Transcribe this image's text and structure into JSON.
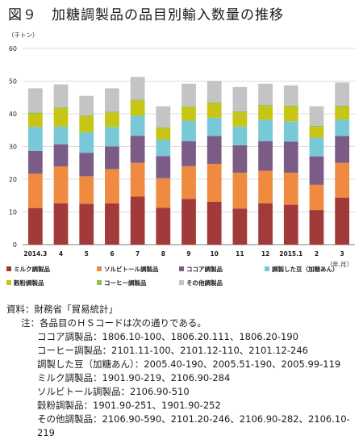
{
  "title": "図９　加糖調製品の品目別輸入数量の推移",
  "chart_data": {
    "type": "bar",
    "stacked": true,
    "unit_label": "（千トン）",
    "x_unit_label": "（年.月）",
    "categories": [
      "2014.3",
      "4",
      "5",
      "6",
      "7",
      "8",
      "9",
      "10",
      "11",
      "12",
      "2015.1",
      "2",
      "3"
    ],
    "ylim": [
      0,
      60
    ],
    "yticks": [
      0,
      10,
      20,
      30,
      40,
      50,
      60
    ],
    "grid": true,
    "legend_position": "bottom",
    "series": [
      {
        "name": "ミルク調製品",
        "color": "#a23a3a",
        "values": [
          11.2,
          12.6,
          12.5,
          12.6,
          14.7,
          11.3,
          14.0,
          13.1,
          11.0,
          12.6,
          12.2,
          10.6,
          14.4
        ]
      },
      {
        "name": "ソルビトール調製品",
        "color": "#ef8a40",
        "values": [
          10.5,
          11.3,
          8.4,
          10.5,
          10.3,
          9.0,
          10.0,
          11.6,
          11.0,
          10.0,
          9.8,
          7.7,
          10.6
        ]
      },
      {
        "name": "ココア調製品",
        "color": "#7b5c86",
        "values": [
          7.0,
          6.8,
          7.2,
          6.9,
          8.3,
          6.8,
          7.6,
          8.5,
          8.4,
          9.0,
          9.5,
          8.7,
          8.2
        ]
      },
      {
        "name": "調製した豆（加糖あん）",
        "color": "#79c8d8",
        "values": [
          7.3,
          5.4,
          6.3,
          6.0,
          6.1,
          5.0,
          6.3,
          5.6,
          5.7,
          6.6,
          6.2,
          5.7,
          5.1
        ]
      },
      {
        "name": "穀粉調製品",
        "color": "#c7c516",
        "values": [
          4.1,
          5.6,
          4.8,
          4.4,
          4.6,
          3.5,
          4.1,
          4.4,
          4.4,
          4.2,
          4.5,
          3.3,
          3.9
        ]
      },
      {
        "name": "コーヒー調製品",
        "color": "#8cc24a",
        "values": [
          0.3,
          0.3,
          0.3,
          0.3,
          0.3,
          0.3,
          0.3,
          0.3,
          0.3,
          0.3,
          0.3,
          0.3,
          0.3
        ]
      },
      {
        "name": "その他調製品",
        "color": "#c4c4c4",
        "values": [
          7.4,
          7.0,
          6.0,
          7.1,
          7.0,
          6.4,
          6.9,
          6.6,
          7.4,
          6.5,
          6.2,
          6.0,
          7.1
        ]
      }
    ]
  },
  "source": "資料：財務省「貿易統計」",
  "notes": {
    "lead": "注：各品目のＨＳコードは次の通りである。",
    "lines": [
      "ココア調製品：1806.10-100、1806.20.111、1806.20-190",
      "コーヒー調製品：2101.11-100、2101.12-110、2101.12-246",
      "調製した豆（加糖あん）：2005.40-190、2005.51-190、2005.99-119",
      "ミルク調製品：1901.90-219、2106.90-284",
      "ソルビトール調製品：2106.90-510",
      "穀粉調製品：1901.90-251、1901.90-252",
      "その他調製品：2106.90-590、2101.20-246、2106.90-282、2106.10-219"
    ]
  }
}
